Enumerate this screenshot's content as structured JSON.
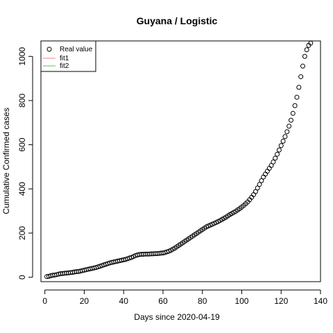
{
  "chart_data": {
    "type": "scatter",
    "title": "Guyana / Logistic",
    "xlabel": "Days since 2020-04-19",
    "ylabel": "Cumulative Confirmed cases",
    "xlim": [
      -2,
      140
    ],
    "ylim": [
      -20,
      1070
    ],
    "x_ticks": [
      0,
      20,
      40,
      60,
      80,
      100,
      120,
      140
    ],
    "y_ticks": [
      0,
      200,
      400,
      600,
      800,
      1000
    ],
    "grid": false,
    "legend_position": "top-left",
    "legend": [
      {
        "name": "Real value",
        "kind": "point",
        "color": "#000000"
      },
      {
        "name": "fit1",
        "kind": "line",
        "color": "#f08080"
      },
      {
        "name": "fit2",
        "kind": "line",
        "color": "#5cbf5c"
      }
    ],
    "series": [
      {
        "name": "Real value",
        "x": [
          1,
          2,
          3,
          4,
          5,
          6,
          7,
          8,
          9,
          10,
          11,
          12,
          13,
          14,
          15,
          16,
          17,
          18,
          19,
          20,
          21,
          22,
          23,
          24,
          25,
          26,
          27,
          28,
          29,
          30,
          31,
          32,
          33,
          34,
          35,
          36,
          37,
          38,
          39,
          40,
          41,
          42,
          43,
          44,
          45,
          46,
          47,
          48,
          49,
          50,
          51,
          52,
          53,
          54,
          55,
          56,
          57,
          58,
          59,
          60,
          61,
          62,
          63,
          64,
          65,
          66,
          67,
          68,
          69,
          70,
          71,
          72,
          73,
          74,
          75,
          76,
          77,
          78,
          79,
          80,
          81,
          82,
          83,
          84,
          85,
          86,
          87,
          88,
          89,
          90,
          91,
          92,
          93,
          94,
          95,
          96,
          97,
          98,
          99,
          100,
          101,
          102,
          103,
          104,
          105,
          106,
          107,
          108,
          109,
          110,
          111,
          112,
          113,
          114,
          115,
          116,
          117,
          118,
          119,
          120,
          121,
          122,
          123,
          124,
          125,
          126,
          127,
          128,
          129,
          130,
          131,
          132,
          133,
          134,
          135
        ],
        "y": [
          3,
          4,
          7,
          9,
          10,
          12,
          14,
          16,
          17,
          18,
          19,
          20,
          21,
          22,
          24,
          25,
          26,
          28,
          30,
          32,
          34,
          36,
          38,
          40,
          42,
          44,
          47,
          50,
          53,
          56,
          59,
          62,
          65,
          67,
          69,
          71,
          73,
          75,
          77,
          79,
          81,
          84,
          87,
          90,
          94,
          98,
          101,
          103,
          104,
          104,
          105,
          105,
          105,
          106,
          106,
          107,
          107,
          108,
          109,
          110,
          112,
          115,
          118,
          122,
          127,
          132,
          138,
          144,
          150,
          156,
          162,
          168,
          174,
          180,
          186,
          192,
          198,
          204,
          210,
          216,
          222,
          228,
          232,
          236,
          240,
          244,
          248,
          252,
          257,
          262,
          267,
          272,
          278,
          284,
          289,
          294,
          299,
          305,
          311,
          318,
          325,
          333,
          341,
          351,
          362,
          374,
          388,
          404,
          420,
          437,
          454,
          467,
          480,
          493,
          506,
          522,
          539,
          557,
          576,
          596,
          616,
          637,
          659,
          684,
          711,
          742,
          777,
          815,
          860,
          908,
          956,
          1000,
          1030,
          1050,
          1060
        ]
      }
    ]
  }
}
